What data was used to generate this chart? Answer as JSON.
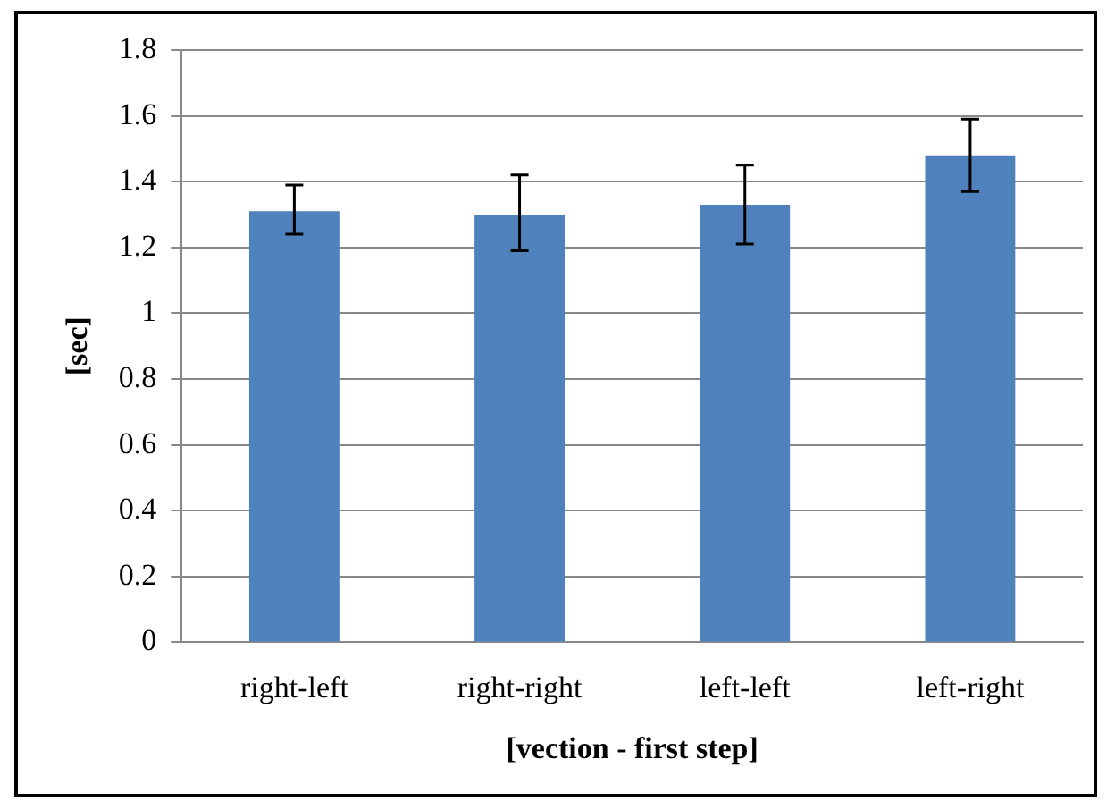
{
  "chart_data": {
    "type": "bar",
    "xlabel": "[vection - first step]",
    "ylabel": "[sec]",
    "categories": [
      "right-left",
      "right-right",
      "left-left",
      "left-right"
    ],
    "values": [
      1.31,
      1.3,
      1.33,
      1.48
    ],
    "errors": [
      [
        1.24,
        1.39
      ],
      [
        1.19,
        1.42
      ],
      [
        1.21,
        1.45
      ],
      [
        1.37,
        1.59
      ]
    ],
    "color": "#4f81bd",
    "ylim": [
      0,
      1.8
    ],
    "yticks": [
      0,
      0.2,
      0.4,
      0.6,
      0.8,
      1,
      1.2,
      1.4,
      1.6,
      1.8
    ],
    "grid": "y",
    "legend": false
  }
}
